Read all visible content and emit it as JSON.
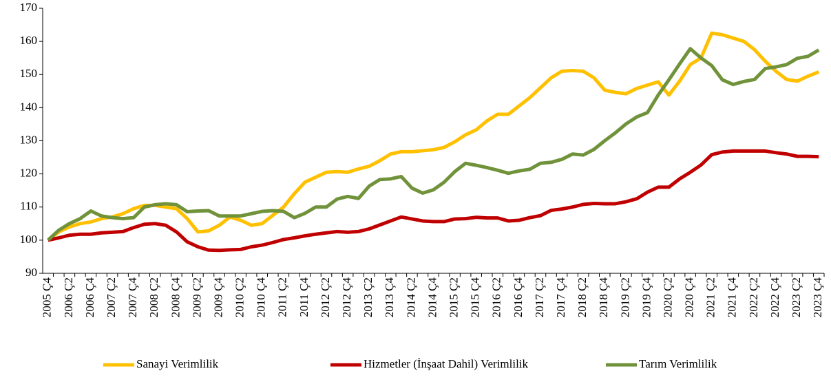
{
  "chart_data": {
    "type": "line",
    "categories": [
      "2005 Ç4",
      null,
      "2006 Ç2",
      null,
      "2006 Ç4",
      null,
      "2007 Ç2",
      null,
      "2007 Ç4",
      null,
      "2008 Ç2",
      null,
      "2008 Ç4",
      null,
      "2009 Ç2",
      null,
      "2009 Ç4",
      null,
      "2010 Ç2",
      null,
      "2010 Ç4",
      null,
      "2011 Ç2",
      null,
      "2011 Ç4",
      null,
      "2012 Ç2",
      null,
      "2012 Ç4",
      null,
      "2013 Ç2",
      null,
      "2013 Ç4",
      null,
      "2014 Ç2",
      null,
      "2014 Ç4",
      null,
      "2015 Ç2",
      null,
      "2015 Ç4",
      null,
      "2016 Ç2",
      null,
      "2016 Ç4",
      null,
      "2017 Ç2",
      null,
      "2017 Ç4",
      null,
      "2018 Ç2",
      null,
      "2018 Ç4",
      null,
      "2019 Ç2",
      null,
      "2019 Ç4",
      null,
      "2020 Ç2",
      null,
      "2020 Ç4",
      null,
      "2021 Ç2",
      null,
      "2021 Ç4",
      null,
      "2022 Ç2",
      null,
      "2022 Ç4",
      null,
      "2023 Ç2",
      null,
      "2023 Ç4"
    ],
    "series": [
      {
        "name": "Sanayi Verimlilik",
        "color": "#ffc000",
        "values": [
          100,
          102.5,
          104,
          105,
          105.5,
          106.5,
          107,
          108,
          109.5,
          110.5,
          110.5,
          110,
          109.5,
          106.5,
          102.5,
          102.8,
          104.5,
          107,
          106,
          104.5,
          105,
          107.5,
          110,
          114,
          117.5,
          119,
          120.5,
          120.7,
          120.5,
          121.5,
          122.3,
          124,
          126,
          126.7,
          126.7,
          127,
          127.3,
          128,
          129.7,
          131.8,
          133.3,
          136,
          138,
          138,
          140.5,
          143,
          146,
          149,
          151,
          151.2,
          151,
          149,
          145.3,
          144.6,
          144.2,
          145.8,
          146.8,
          147.8,
          143.8,
          148,
          153,
          155,
          162.5,
          162,
          161,
          160,
          157.5,
          154,
          151,
          148.5,
          148,
          149.5,
          150.8
        ]
      },
      {
        "name": "Hizmetler (İnşaat Dahil) Verimlilik",
        "color": "#c00000",
        "values": [
          100,
          100.7,
          101.5,
          101.8,
          101.8,
          102.2,
          102.4,
          102.6,
          103.8,
          104.8,
          105,
          104.5,
          102.5,
          99.5,
          98,
          97,
          96.9,
          97.1,
          97.2,
          98,
          98.5,
          99.3,
          100.2,
          100.7,
          101.3,
          101.8,
          102.2,
          102.6,
          102.4,
          102.6,
          103.4,
          104.6,
          105.8,
          107,
          106.4,
          105.8,
          105.6,
          105.6,
          106.4,
          106.5,
          106.9,
          106.7,
          106.7,
          105.8,
          106,
          106.8,
          107.4,
          109,
          109.4,
          110,
          110.8,
          111.1,
          111,
          111,
          111.6,
          112.5,
          114.5,
          116,
          116,
          118.5,
          120.5,
          122.7,
          125.8,
          126.6,
          126.9,
          126.9,
          126.9,
          126.9,
          126.4,
          126,
          125.3,
          125.3,
          125.2
        ]
      },
      {
        "name": "Tarım Verimlilik",
        "color": "#70923a",
        "values": [
          100,
          103,
          105,
          106.5,
          108.8,
          107.3,
          106.8,
          106.5,
          106.8,
          110,
          110.7,
          111,
          110.7,
          108.6,
          108.8,
          108.9,
          107.3,
          107.3,
          107.3,
          108,
          108.7,
          108.9,
          108.7,
          106.8,
          108.1,
          110,
          110,
          112.4,
          113.2,
          112.6,
          116.3,
          118.3,
          118.5,
          119.2,
          115.7,
          114.2,
          115.2,
          117.5,
          120.7,
          123.2,
          122.6,
          121.9,
          121.1,
          120.2,
          120.9,
          121.4,
          123.2,
          123.5,
          124.4,
          126,
          125.7,
          127.4,
          130,
          132.4,
          135.1,
          137.2,
          138.5,
          143.8,
          148.4,
          153.2,
          157.8,
          155,
          152.7,
          148.4,
          147,
          147.9,
          148.5,
          151.8,
          152.3,
          153,
          154.9,
          155.5,
          157.4
        ]
      }
    ],
    "ylim": [
      90,
      170
    ],
    "yticks": [
      90,
      100,
      110,
      120,
      130,
      140,
      150,
      160,
      170
    ],
    "grid": false,
    "legend": "bottom"
  }
}
